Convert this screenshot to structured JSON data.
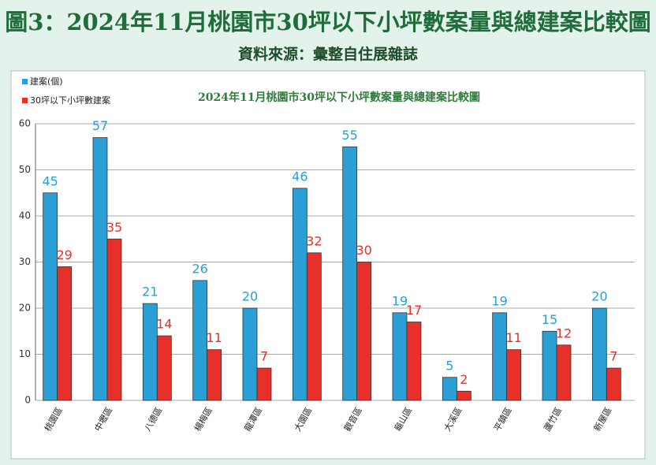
{
  "chart_data": {
    "type": "bar",
    "title": "圖3：2024年11月桃園市30坪以下小坪數案量與總建案比較圖",
    "subtitle": "資料來源：彙整自住展雜誌",
    "inner_title": "2024年11月桃園市30坪以下小坪數案量與總建案比較圖",
    "categories": [
      "桃園區",
      "中壢區",
      "八德區",
      "楊梅區",
      "龍潭區",
      "大園區",
      "觀音區",
      "龜山區",
      "大溪區",
      "平鎮區",
      "蘆竹區",
      "新屋區"
    ],
    "series": [
      {
        "name": "建案(個)",
        "color": "#2a9fd6",
        "values": [
          45,
          57,
          21,
          26,
          20,
          46,
          55,
          19,
          5,
          19,
          15,
          20
        ]
      },
      {
        "name": "30坪以下小坪數建案",
        "color": "#e8302a",
        "values": [
          29,
          35,
          14,
          11,
          7,
          32,
          30,
          17,
          2,
          11,
          12,
          7
        ]
      }
    ],
    "ylim": [
      0,
      60
    ],
    "yticks": [
      0,
      10,
      20,
      30,
      40,
      50,
      60
    ],
    "grid": true,
    "legend": "top-left"
  }
}
